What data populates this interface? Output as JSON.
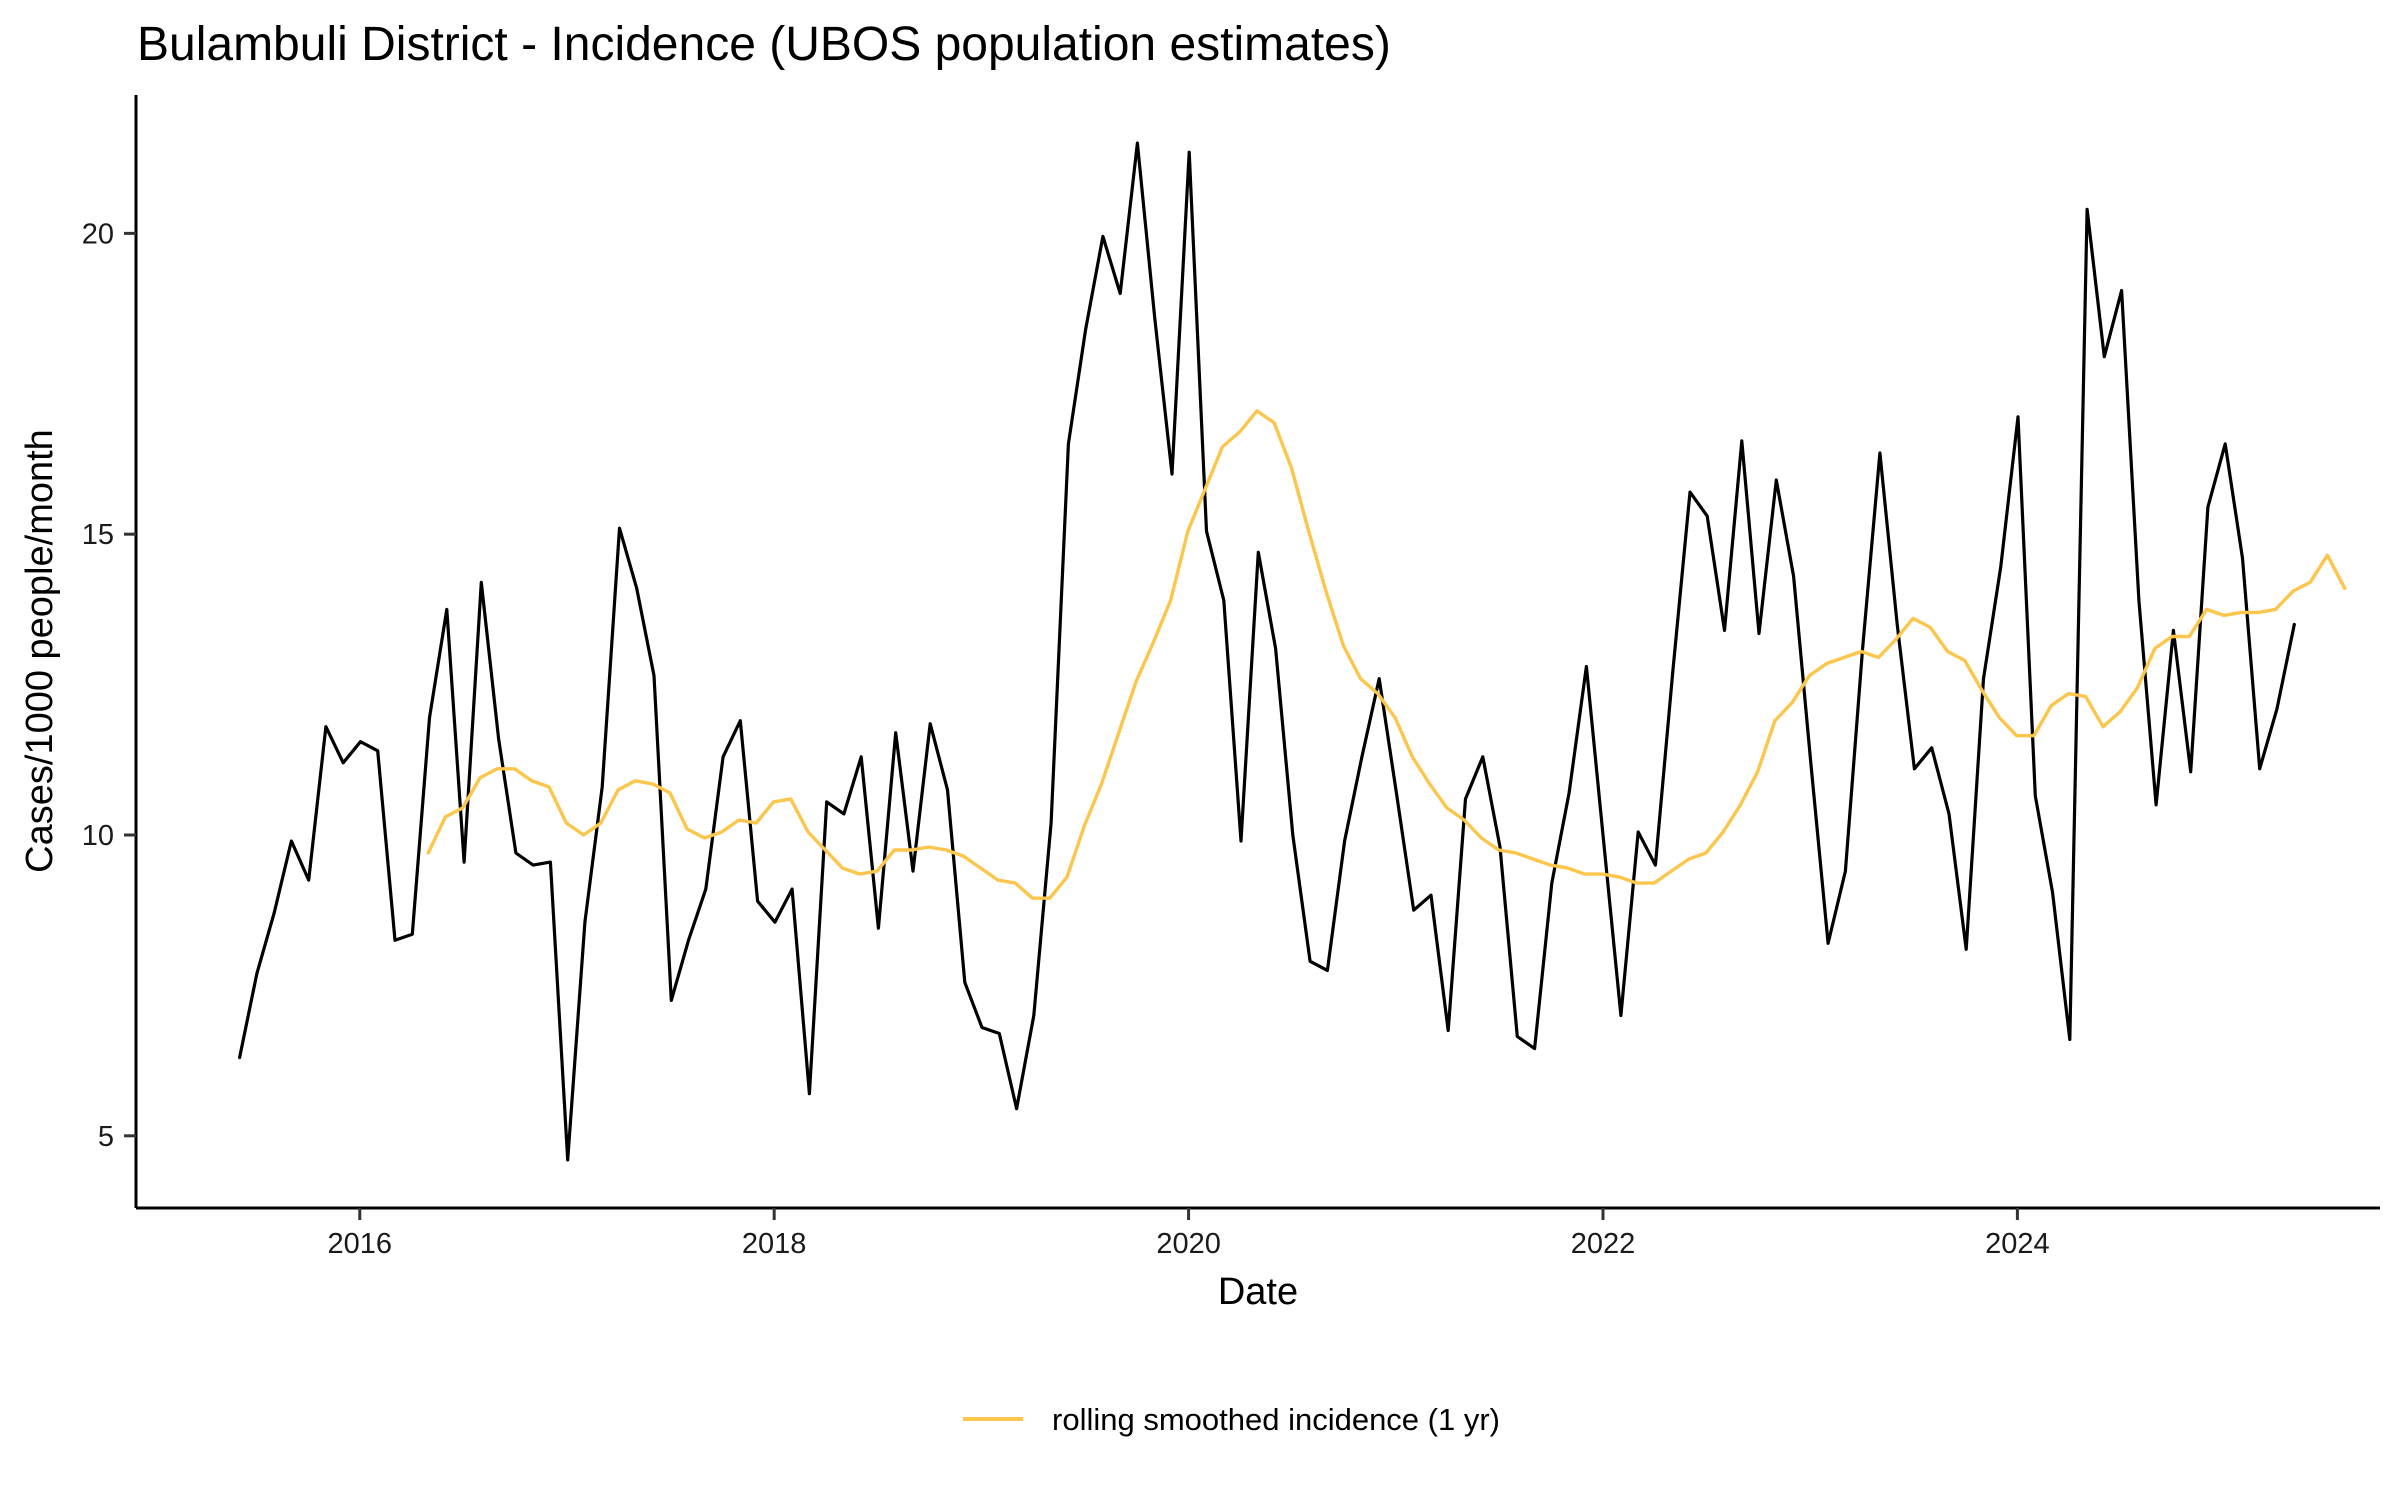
{
  "chart_data": {
    "type": "line",
    "title": "Bulambuli District - Incidence (UBOS population estimates)",
    "xlabel": "Date",
    "ylabel": "Cases/1000 people/month",
    "xlim": [
      2014.92,
      2025.75
    ],
    "ylim": [
      3.8,
      22.3
    ],
    "x_ticks": [
      2016,
      2018,
      2020,
      2022,
      2024
    ],
    "x_tick_labels": [
      "2016",
      "2018",
      "2020",
      "2022",
      "2024"
    ],
    "y_ticks": [
      5,
      10,
      15,
      20
    ],
    "y_tick_labels": [
      "5",
      "10",
      "15",
      "20"
    ],
    "grid": false,
    "legend_position": "bottom-center",
    "series": [
      {
        "name": "incidence",
        "color": "#000000",
        "show_in_legend": false,
        "start_year": 2015.42,
        "step": 0.08333,
        "values": [
          6.3,
          7.7,
          8.7,
          9.9,
          9.25,
          11.8,
          11.2,
          11.55,
          11.4,
          8.25,
          8.35,
          11.95,
          13.75,
          9.55,
          14.2,
          11.6,
          9.7,
          9.5,
          9.55,
          4.6,
          8.55,
          10.8,
          15.1,
          14.1,
          12.65,
          7.25,
          8.25,
          9.1,
          11.3,
          11.9,
          8.9,
          8.55,
          9.1,
          5.7,
          10.55,
          10.35,
          11.3,
          8.45,
          11.7,
          9.4,
          11.85,
          10.75,
          7.55,
          6.8,
          6.7,
          5.45,
          7.0,
          10.2,
          16.5,
          18.4,
          19.95,
          19.0,
          21.5,
          18.6,
          16.0,
          21.35,
          15.05,
          13.9,
          9.9,
          14.7,
          13.1,
          10.0,
          7.9,
          7.75,
          9.9,
          11.3,
          12.6,
          10.7,
          8.75,
          9.0,
          6.75,
          10.6,
          11.3,
          9.8,
          6.65,
          6.45,
          9.2,
          10.7,
          12.8,
          9.9,
          7.0,
          10.05,
          9.5,
          12.7,
          15.7,
          15.3,
          13.4,
          16.55,
          13.35,
          15.9,
          14.3,
          11.2,
          8.2,
          9.4,
          13.1,
          16.35,
          13.5,
          11.1,
          11.45,
          10.35,
          8.1,
          12.6,
          14.45,
          16.95,
          10.65,
          9.05,
          6.6,
          20.4,
          17.95,
          19.05,
          13.9,
          10.5,
          13.4,
          11.05,
          15.45,
          16.5,
          14.6,
          11.1,
          12.1,
          13.5
        ]
      },
      {
        "name": "rolling smoothed incidence (1 yr)",
        "color": "#fcc54b",
        "show_in_legend": true,
        "start_year": 2016.33,
        "step": 0.08333,
        "values": [
          9.7,
          10.3,
          10.45,
          10.95,
          11.1,
          11.1,
          10.9,
          10.8,
          10.2,
          10.0,
          10.2,
          10.75,
          10.9,
          10.85,
          10.7,
          10.1,
          9.95,
          10.05,
          10.25,
          10.2,
          10.55,
          10.6,
          10.05,
          9.75,
          9.45,
          9.35,
          9.4,
          9.75,
          9.75,
          9.8,
          9.75,
          9.65,
          9.45,
          9.25,
          9.2,
          8.95,
          8.95,
          9.3,
          10.15,
          10.85,
          11.7,
          12.55,
          13.2,
          13.9,
          15.05,
          15.75,
          16.45,
          16.7,
          17.05,
          16.85,
          16.1,
          15.05,
          14.05,
          13.15,
          12.6,
          12.35,
          11.95,
          11.3,
          10.85,
          10.45,
          10.25,
          9.95,
          9.75,
          9.7,
          9.6,
          9.5,
          9.45,
          9.35,
          9.35,
          9.3,
          9.2,
          9.2,
          9.4,
          9.6,
          9.7,
          10.05,
          10.5,
          11.05,
          11.9,
          12.2,
          12.65,
          12.85,
          12.95,
          13.05,
          12.95,
          13.25,
          13.6,
          13.45,
          13.05,
          12.9,
          12.4,
          11.95,
          11.65,
          11.65,
          12.15,
          12.35,
          12.3,
          11.8,
          12.05,
          12.45,
          13.1,
          13.3,
          13.3,
          13.75,
          13.65,
          13.7,
          13.7,
          13.75,
          14.05,
          14.2,
          14.65,
          14.1
        ]
      }
    ]
  }
}
